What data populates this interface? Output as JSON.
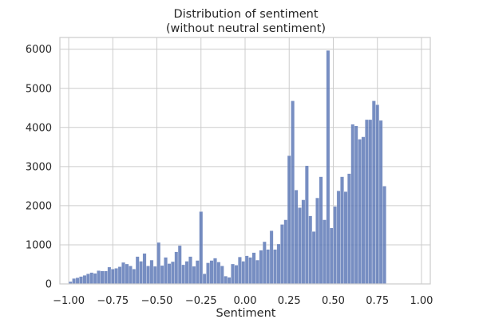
{
  "chart_data": {
    "type": "bar",
    "title": "Distribution of sentiment",
    "subtitle": "(without neutral sentiment)",
    "xlabel": "Sentiment",
    "ylabel": "",
    "xlim": [
      -1.05,
      1.05
    ],
    "ylim": [
      0,
      6300
    ],
    "xticks": [
      -1.0,
      -0.75,
      -0.5,
      -0.25,
      0.0,
      0.25,
      0.5,
      0.75,
      1.0
    ],
    "xtick_labels": [
      "−1.00",
      "−0.75",
      "−0.50",
      "−0.25",
      "0.00",
      "0.25",
      "0.50",
      "0.75",
      "1.00"
    ],
    "yticks": [
      0,
      1000,
      2000,
      3000,
      4000,
      5000,
      6000
    ],
    "ytick_labels": [
      "0",
      "1000",
      "2000",
      "3000",
      "4000",
      "5000",
      "6000"
    ],
    "grid": true,
    "legend": "none",
    "bar_color": "#5975b5",
    "bin_start": -1.0,
    "bin_width": 0.02,
    "values": [
      60,
      140,
      160,
      190,
      220,
      260,
      290,
      270,
      340,
      330,
      330,
      430,
      380,
      400,
      440,
      550,
      510,
      460,
      380,
      700,
      580,
      780,
      460,
      610,
      450,
      1060,
      470,
      680,
      520,
      570,
      820,
      980,
      490,
      580,
      700,
      450,
      600,
      1850,
      260,
      540,
      600,
      660,
      560,
      460,
      200,
      170,
      510,
      480,
      690,
      580,
      720,
      680,
      800,
      610,
      860,
      1080,
      880,
      1360,
      880,
      1020,
      1520,
      1640,
      3280,
      4680,
      2400,
      1950,
      2150,
      3020,
      1740,
      1340,
      2200,
      2740,
      1640,
      5970,
      1430,
      1980,
      2380,
      2740,
      2360,
      2820,
      4080,
      4040,
      3700,
      3760,
      4200,
      4200,
      4680,
      4580,
      4180,
      2500
    ]
  }
}
